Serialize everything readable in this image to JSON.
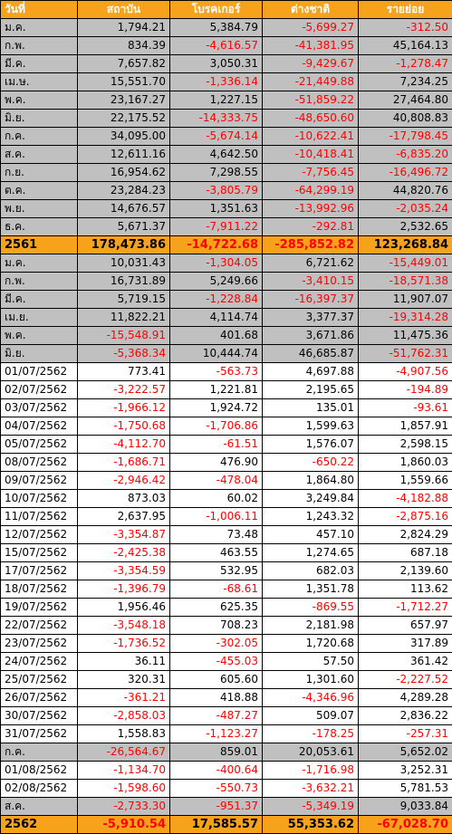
{
  "colors": {
    "header_bg": "#f7a21b",
    "summary_bg": "#c0c0c0",
    "negative": "#ff0000"
  },
  "headers": [
    "วันที่",
    "สถาบัน",
    "โบรคเกอร์",
    "ต่างชาติ",
    "รายย่อย"
  ],
  "rows": [
    {
      "type": "gray",
      "label": "ม.ค.",
      "values": [
        "1,794.21",
        "5,384.79",
        "-5,699.27",
        "-312.50"
      ]
    },
    {
      "type": "gray",
      "label": "ก.พ.",
      "values": [
        "834.39",
        "-4,616.57",
        "-41,381.95",
        "45,164.13"
      ]
    },
    {
      "type": "gray",
      "label": "มี.ค.",
      "values": [
        "7,657.82",
        "3,050.31",
        "-9,429.67",
        "-1,278.47"
      ]
    },
    {
      "type": "gray",
      "label": "เม.ษ.",
      "values": [
        "15,551.70",
        "-1,336.14",
        "-21,449.88",
        "7,234.25"
      ]
    },
    {
      "type": "gray",
      "label": "พ.ค.",
      "values": [
        "23,167.27",
        "1,227.15",
        "-51,859.22",
        "27,464.80"
      ]
    },
    {
      "type": "gray",
      "label": "มิ.ย.",
      "values": [
        "22,175.52",
        "-14,333.75",
        "-48,650.60",
        "40,808.83"
      ]
    },
    {
      "type": "gray",
      "label": "ก.ค.",
      "values": [
        "34,095.00",
        "-5,674.14",
        "-10,622.41",
        "-17,798.45"
      ]
    },
    {
      "type": "gray",
      "label": "ส.ค.",
      "values": [
        "12,611.16",
        "4,642.50",
        "-10,418.41",
        "-6,835.20"
      ]
    },
    {
      "type": "gray",
      "label": "ก.ย.",
      "values": [
        "16,954.62",
        "7,298.55",
        "-7,756.45",
        "-16,496.72"
      ]
    },
    {
      "type": "gray",
      "label": "ต.ค.",
      "values": [
        "23,284.23",
        "-3,805.79",
        "-64,299.19",
        "44,820.76"
      ]
    },
    {
      "type": "gray",
      "label": "พ.ย.",
      "values": [
        "14,676.57",
        "1,351.63",
        "-13,992.96",
        "-2,035.24"
      ]
    },
    {
      "type": "gray",
      "label": "ธ.ค.",
      "values": [
        "5,671.37",
        "-7,911.22",
        "-292.81",
        "2,532.65"
      ]
    },
    {
      "type": "total",
      "label": "2561",
      "values": [
        "178,473.86",
        "-14,722.68",
        "-285,852.82",
        "123,268.84"
      ]
    },
    {
      "type": "gray",
      "label": "ม.ค.",
      "values": [
        "10,031.43",
        "-1,304.05",
        "6,721.62",
        "-15,449.01"
      ]
    },
    {
      "type": "gray",
      "label": "ก.พ.",
      "values": [
        "16,731.89",
        "5,249.66",
        "-3,410.15",
        "-18,571.38"
      ]
    },
    {
      "type": "gray",
      "label": "มี.ค.",
      "values": [
        "5,719.15",
        "-1,228.84",
        "-16,397.37",
        "11,907.07"
      ]
    },
    {
      "type": "gray",
      "label": "เม.ย.",
      "values": [
        "11,822.21",
        "4,114.74",
        "3,377.37",
        "-19,314.28"
      ]
    },
    {
      "type": "gray",
      "label": "พ.ค.",
      "values": [
        "-15,548.91",
        "401.68",
        "3,671.86",
        "11,475.36"
      ]
    },
    {
      "type": "gray",
      "label": "มิ.ย.",
      "values": [
        "-5,368.34",
        "10,444.74",
        "46,685.87",
        "-51,762.31"
      ]
    },
    {
      "type": "white",
      "label": "01/07/2562",
      "values": [
        "773.41",
        "-563.73",
        "4,697.88",
        "-4,907.56"
      ]
    },
    {
      "type": "white",
      "label": "02/07/2562",
      "values": [
        "-3,222.57",
        "1,221.81",
        "2,195.65",
        "-194.89"
      ]
    },
    {
      "type": "white",
      "label": "03/07/2562",
      "values": [
        "-1,966.12",
        "1,924.72",
        "135.01",
        "-93.61"
      ]
    },
    {
      "type": "white",
      "label": "04/07/2562",
      "values": [
        "-1,750.68",
        "-1,706.86",
        "1,599.63",
        "1,857.91"
      ]
    },
    {
      "type": "white",
      "label": "05/07/2562",
      "values": [
        "-4,112.70",
        "-61.51",
        "1,576.07",
        "2,598.15"
      ]
    },
    {
      "type": "white",
      "label": "08/07/2562",
      "values": [
        "-1,686.71",
        "476.90",
        "-650.22",
        "1,860.03"
      ]
    },
    {
      "type": "white",
      "label": "09/07/2562",
      "values": [
        "-2,946.42",
        "-478.04",
        "1,864.80",
        "1,559.66"
      ]
    },
    {
      "type": "white",
      "label": "10/07/2562",
      "values": [
        "873.03",
        "60.02",
        "3,249.84",
        "-4,182.88"
      ]
    },
    {
      "type": "white",
      "label": "11/07/2562",
      "values": [
        "2,637.95",
        "-1,006.11",
        "1,243.32",
        "-2,875.16"
      ]
    },
    {
      "type": "white",
      "label": "12/07/2562",
      "values": [
        "-3,354.87",
        "73.48",
        "457.10",
        "2,824.29"
      ]
    },
    {
      "type": "white",
      "label": "15/07/2562",
      "values": [
        "-2,425.38",
        "463.55",
        "1,274.65",
        "687.18"
      ]
    },
    {
      "type": "white",
      "label": "17/07/2562",
      "values": [
        "-3,354.59",
        "532.95",
        "682.03",
        "2,139.60"
      ]
    },
    {
      "type": "white",
      "label": "18/07/2562",
      "values": [
        "-1,396.79",
        "-68.61",
        "1,351.78",
        "113.62"
      ]
    },
    {
      "type": "white",
      "label": "19/07/2562",
      "values": [
        "1,956.46",
        "625.35",
        "-869.55",
        "-1,712.27"
      ]
    },
    {
      "type": "white",
      "label": "22/07/2562",
      "values": [
        "-3,548.18",
        "708.23",
        "2,181.98",
        "657.97"
      ]
    },
    {
      "type": "white",
      "label": "23/07/2562",
      "values": [
        "-1,736.52",
        "-302.05",
        "1,720.68",
        "317.89"
      ]
    },
    {
      "type": "white",
      "label": "24/07/2562",
      "values": [
        "36.11",
        "-455.03",
        "57.50",
        "361.42"
      ]
    },
    {
      "type": "white",
      "label": "25/07/2562",
      "values": [
        "320.31",
        "605.60",
        "1,301.60",
        "-2,227.52"
      ]
    },
    {
      "type": "white",
      "label": "26/07/2562",
      "values": [
        "-361.21",
        "418.88",
        "-4,346.96",
        "4,289.28"
      ]
    },
    {
      "type": "white",
      "label": "30/07/2562",
      "values": [
        "-2,858.03",
        "-487.27",
        "509.07",
        "2,836.22"
      ]
    },
    {
      "type": "white",
      "label": "31/07/2562",
      "values": [
        "1,558.83",
        "-1,123.27",
        "-178.25",
        "-257.31"
      ]
    },
    {
      "type": "gray",
      "label": "ก.ค.",
      "values": [
        "-26,564.67",
        "859.01",
        "20,053.61",
        "5,652.02"
      ]
    },
    {
      "type": "white",
      "label": "01/08/2562",
      "values": [
        "-1,134.70",
        "-400.64",
        "-1,716.98",
        "3,252.31"
      ]
    },
    {
      "type": "white",
      "label": "02/08/2562",
      "values": [
        "-1,598.60",
        "-550.73",
        "-3,632.21",
        "5,781.53"
      ]
    },
    {
      "type": "gray",
      "label": "ส.ค.",
      "values": [
        "-2,733.30",
        "-951.37",
        "-5,349.19",
        "9,033.84"
      ]
    },
    {
      "type": "total",
      "label": "2562",
      "values": [
        "-5,910.54",
        "17,585.57",
        "55,353.62",
        "-67,028.70"
      ]
    }
  ]
}
